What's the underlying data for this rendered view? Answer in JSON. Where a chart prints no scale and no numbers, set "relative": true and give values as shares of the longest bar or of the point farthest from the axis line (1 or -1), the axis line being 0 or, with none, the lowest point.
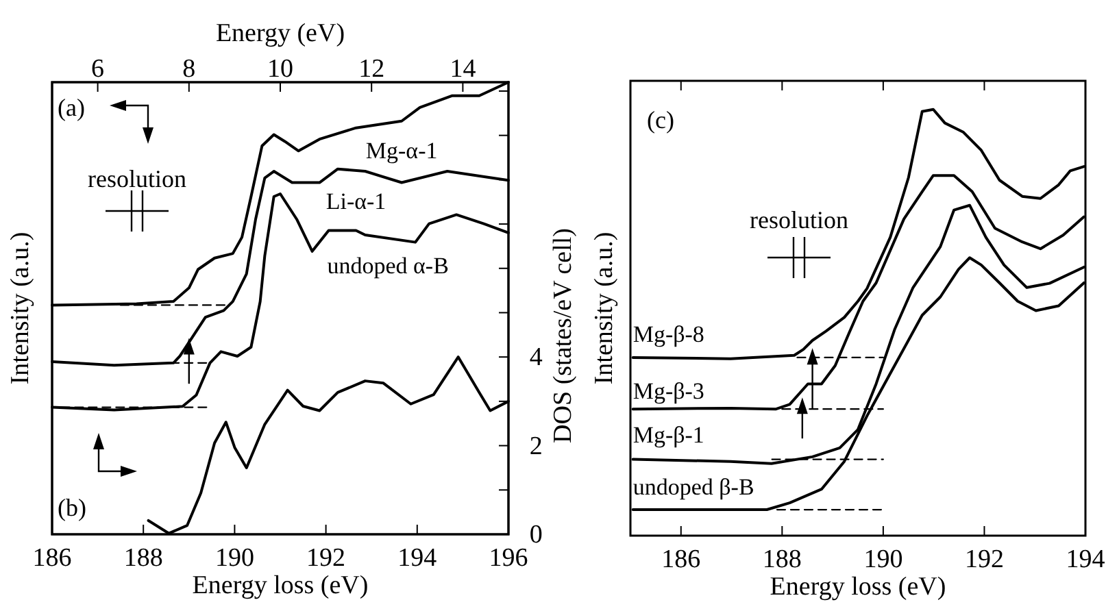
{
  "chart_data": [
    {
      "type": "line",
      "xlabel": "Energy loss (eV)",
      "ylabel": "Intensity (a.u.)",
      "x2label": "Energy (eV)",
      "xlim": [
        186,
        196
      ],
      "xticks": [
        186,
        188,
        190,
        192,
        194,
        196
      ],
      "x2lim": [
        5,
        15
      ],
      "x2ticks": [
        6,
        8,
        10,
        12,
        14
      ],
      "relative": true,
      "grid": false,
      "marker": "none",
      "line_style": "solid",
      "annotations": [
        "(a)",
        "resolution"
      ],
      "series": [
        {
          "name": "Mg-α-1",
          "color": "#000000",
          "x": [
            186.0,
            187.85,
            188.66,
            189.0,
            189.2,
            189.56,
            189.96,
            190.16,
            190.36,
            190.6,
            190.86,
            191.1,
            191.4,
            191.86,
            192.66,
            193.66,
            194.06,
            194.76,
            195.36,
            196.0
          ],
          "values": [
            0.507,
            0.51,
            0.515,
            0.545,
            0.586,
            0.611,
            0.621,
            0.657,
            0.747,
            0.859,
            0.884,
            0.869,
            0.848,
            0.874,
            0.899,
            0.914,
            0.944,
            0.97,
            0.97,
            1.0
          ]
        },
        {
          "name": "Li-α-1",
          "color": "#000000",
          "x": [
            186.0,
            187.36,
            188.66,
            188.8,
            189.06,
            189.36,
            189.76,
            189.96,
            190.26,
            190.46,
            190.66,
            190.86,
            191.26,
            191.86,
            192.26,
            192.86,
            193.66,
            194.66,
            196.0
          ],
          "values": [
            0.382,
            0.374,
            0.379,
            0.394,
            0.434,
            0.48,
            0.495,
            0.515,
            0.576,
            0.697,
            0.788,
            0.803,
            0.778,
            0.778,
            0.808,
            0.803,
            0.778,
            0.803,
            0.783
          ]
        },
        {
          "name": "undoped α-B",
          "color": "#000000",
          "x": [
            186.0,
            187.36,
            188.86,
            189.16,
            189.46,
            189.7,
            190.06,
            190.36,
            190.56,
            190.66,
            190.86,
            191.0,
            191.36,
            191.7,
            192.06,
            192.66,
            192.86,
            193.96,
            194.26,
            194.86,
            195.46,
            196.0
          ],
          "values": [
            0.281,
            0.275,
            0.283,
            0.308,
            0.379,
            0.404,
            0.394,
            0.414,
            0.515,
            0.616,
            0.747,
            0.753,
            0.697,
            0.626,
            0.672,
            0.672,
            0.662,
            0.646,
            0.687,
            0.707,
            0.687,
            0.667
          ]
        },
        {
          "color": "#000000",
          "line_style": "dashed",
          "x": [
            187.5,
            189.8
          ],
          "values": [
            0.507,
            0.507
          ]
        },
        {
          "color": "#000000",
          "line_style": "dashed",
          "x": [
            188.6,
            189.46
          ],
          "values": [
            0.379,
            0.379
          ]
        },
        {
          "color": "#000000",
          "line_style": "dashed",
          "x": [
            186.2,
            189.46
          ],
          "values": [
            0.281,
            0.281
          ]
        }
      ]
    },
    {
      "type": "line",
      "y2label": "DOS (states/eV cell)",
      "xlim": [
        186,
        196
      ],
      "tick_labels": "y",
      "y2lim": [
        0,
        10.2
      ],
      "y2ticks": [
        0,
        {
          "value": 1,
          "label": null
        },
        2,
        {
          "value": 3,
          "label": null
        },
        4,
        {
          "value": 5,
          "label": null
        },
        {
          "value": 6,
          "label": null
        },
        {
          "value": 7,
          "label": null
        },
        {
          "value": 8,
          "label": null
        },
        {
          "value": 9,
          "label": null
        },
        {
          "value": 10,
          "label": null
        }
      ],
      "grid": false,
      "marker": "none",
      "line_style": "solid",
      "annotations": [
        "(b)"
      ],
      "series": [
        {
          "axis": "y2",
          "color": "#000000",
          "x": [
            188.11,
            188.56,
            188.96,
            189.26,
            189.56,
            189.81,
            190.0,
            190.26,
            190.66,
            191.16,
            191.5,
            191.86,
            192.26,
            192.86,
            193.26,
            193.86,
            194.36,
            194.9,
            195.36,
            195.6,
            196.0
          ],
          "values": [
            0.31,
            0.02,
            0.2,
            0.93,
            2.06,
            2.53,
            1.96,
            1.5,
            2.48,
            3.25,
            2.89,
            2.79,
            3.2,
            3.46,
            3.41,
            2.94,
            3.15,
            4.0,
            3.2,
            2.79,
            3.0
          ]
        }
      ]
    },
    {
      "type": "line",
      "xlabel": "Energy loss (eV)",
      "ylabel": "Intensity (a.u.)",
      "xlim": [
        185,
        194
      ],
      "xticks": [
        186,
        188,
        190,
        192,
        194
      ],
      "relative": true,
      "grid": false,
      "marker": "none",
      "line_style": "solid",
      "annotations": [
        "(c)",
        "resolution"
      ],
      "series": [
        {
          "name": "Mg-β-8",
          "color": "#000000",
          "x": [
            185.05,
            186.98,
            188.24,
            188.42,
            188.6,
            188.87,
            189.23,
            189.5,
            189.68,
            190.14,
            190.5,
            190.77,
            190.99,
            191.22,
            191.58,
            191.94,
            192.3,
            192.75,
            193.11,
            193.47,
            193.7,
            193.97
          ],
          "values": [
            0.418,
            0.415,
            0.423,
            0.437,
            0.458,
            0.48,
            0.512,
            0.55,
            0.58,
            0.7,
            0.84,
            0.995,
            1.0,
            0.968,
            0.947,
            0.904,
            0.834,
            0.796,
            0.791,
            0.823,
            0.856,
            0.866
          ]
        },
        {
          "name": "Mg-β-3",
          "color": "#000000",
          "x": [
            185.05,
            186.98,
            187.88,
            188.15,
            188.51,
            188.78,
            189.05,
            189.32,
            189.6,
            189.86,
            190.41,
            190.77,
            190.99,
            191.4,
            191.76,
            192.21,
            192.75,
            193.11,
            193.56,
            193.97
          ],
          "values": [
            0.297,
            0.299,
            0.297,
            0.308,
            0.356,
            0.356,
            0.399,
            0.474,
            0.55,
            0.593,
            0.743,
            0.807,
            0.845,
            0.845,
            0.807,
            0.721,
            0.689,
            0.673,
            0.705,
            0.748
          ]
        },
        {
          "name": "Mg-β-1",
          "color": "#000000",
          "x": [
            185.05,
            186.98,
            187.79,
            188.6,
            189.14,
            189.5,
            189.86,
            190.23,
            190.59,
            191.13,
            191.4,
            191.71,
            192.03,
            192.39,
            192.84,
            193.29,
            193.97
          ],
          "values": [
            0.179,
            0.174,
            0.169,
            0.185,
            0.206,
            0.249,
            0.356,
            0.485,
            0.582,
            0.678,
            0.764,
            0.775,
            0.7,
            0.635,
            0.582,
            0.592,
            0.63
          ]
        },
        {
          "name": "undoped β-B",
          "color": "#000000",
          "x": [
            185.05,
            187.7,
            188.15,
            188.78,
            189.23,
            189.68,
            190.23,
            190.77,
            191.13,
            191.49,
            191.71,
            191.94,
            192.3,
            192.66,
            193.02,
            193.47,
            193.97
          ],
          "values": [
            0.061,
            0.061,
            0.077,
            0.109,
            0.174,
            0.281,
            0.4,
            0.517,
            0.56,
            0.625,
            0.652,
            0.635,
            0.593,
            0.55,
            0.528,
            0.539,
            0.593
          ]
        },
        {
          "color": "#000000",
          "line_style": "dashed",
          "x": [
            188.3,
            190.0
          ],
          "values": [
            0.418,
            0.418
          ]
        },
        {
          "color": "#000000",
          "line_style": "dashed",
          "x": [
            188.0,
            190.0
          ],
          "values": [
            0.297,
            0.297
          ]
        },
        {
          "color": "#000000",
          "line_style": "dashed",
          "x": [
            187.8,
            190.0
          ],
          "values": [
            0.179,
            0.179
          ]
        },
        {
          "color": "#000000",
          "line_style": "dashed",
          "x": [
            187.9,
            190.0
          ],
          "values": [
            0.061,
            0.061
          ]
        }
      ]
    }
  ]
}
